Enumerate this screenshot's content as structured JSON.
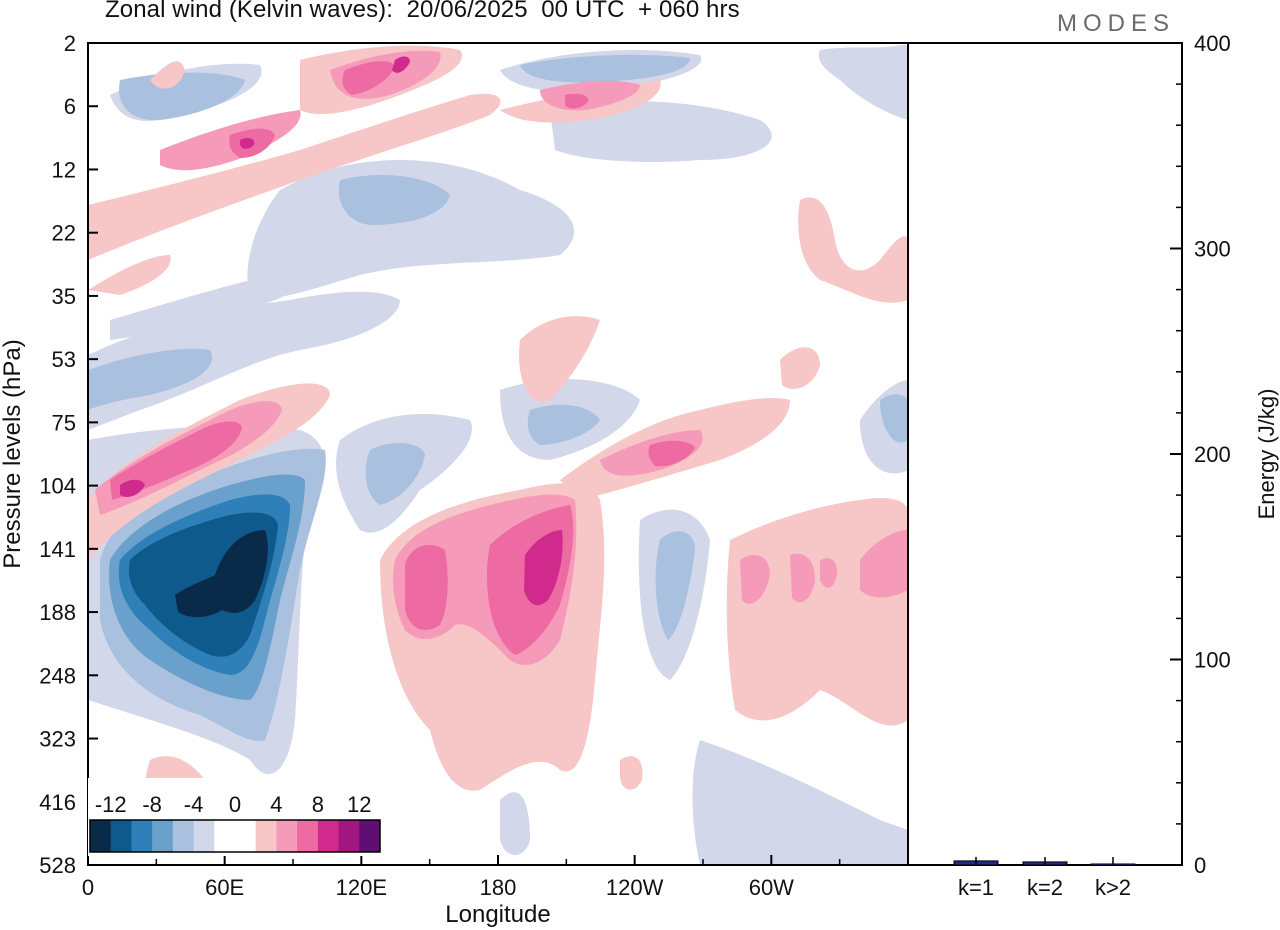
{
  "header": {
    "title": "Zonal wind (Kelvin waves):  20/06/2025  00 UTC  + 060 hrs",
    "logo": "MODES"
  },
  "chart_data": [
    {
      "type": "heatmap",
      "title": "Zonal wind (Kelvin waves):  20/06/2025  00 UTC  + 060 hrs",
      "xlabel": "Longitude",
      "ylabel": "Pressure levels (hPa)",
      "x_ticks": [
        "0",
        "60E",
        "120E",
        "180",
        "120W",
        "60W"
      ],
      "y_ticks": [
        "2",
        "6",
        "12",
        "22",
        "35",
        "53",
        "75",
        "104",
        "141",
        "188",
        "248",
        "323",
        "416",
        "528"
      ],
      "colorbar": {
        "tick_labels": [
          "-12",
          "-8",
          "-4",
          "0",
          "4",
          "8",
          "12"
        ],
        "colors": [
          "#0a2a4a",
          "#0f5a8c",
          "#2f7fb8",
          "#6aa0cc",
          "#a9c1de",
          "#d3d7ea",
          "#ffffff",
          "#ffffff",
          "#f7c6c6",
          "#f59ab8",
          "#ee6aa3",
          "#cf2a8c",
          "#a21680",
          "#5f0f74"
        ]
      },
      "features": [
        {
          "name": "neg-core-lower",
          "level": -14,
          "lon": 62,
          "p": 141
        },
        {
          "name": "pos-lower-center",
          "level": 10,
          "lon": 190,
          "p": 160
        },
        {
          "name": "pos-upper",
          "level": 8,
          "lon": 45,
          "p": 95
        }
      ]
    },
    {
      "type": "bar",
      "categories": [
        "k=1",
        "k=2",
        "k>2"
      ],
      "values": [
        2,
        1.5,
        0.5
      ],
      "ylabel": "Energy (J/kg)",
      "ylim": [
        0,
        400
      ],
      "y_ticks": [
        "0",
        "100",
        "200",
        "300",
        "400"
      ],
      "bar_color": "#1f2a8a"
    }
  ]
}
